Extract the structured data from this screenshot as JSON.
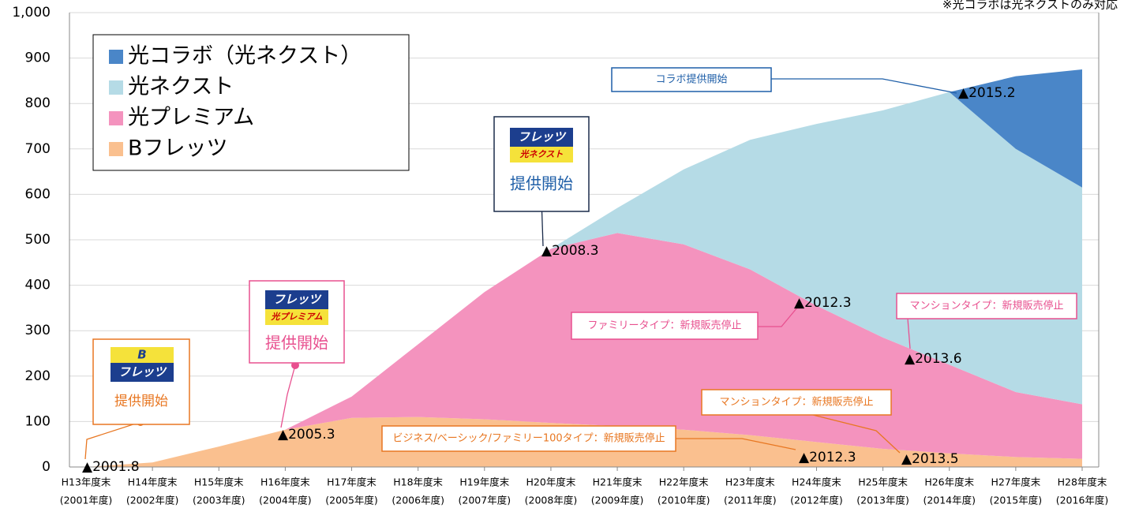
{
  "chart_data": {
    "type": "stacked_area",
    "categories": [
      "H13年度末",
      "H14年度末",
      "H15年度末",
      "H16年度末",
      "H17年度末",
      "H18年度末",
      "H19年度末",
      "H20年度末",
      "H21年度末",
      "H22年度末",
      "H23年度末",
      "H24年度末",
      "H25年度末",
      "H26年度末",
      "H27年度末",
      "H28年度末"
    ],
    "category_years": [
      "(2001年度)",
      "(2002年度)",
      "(2003年度)",
      "(2004年度)",
      "(2005年度)",
      "(2006年度)",
      "(2007年度)",
      "(2008年度)",
      "(2009年度)",
      "(2010年度)",
      "(2011年度)",
      "(2012年度)",
      "(2013年度)",
      "(2014年度)",
      "(2015年度)",
      "(2016年度)"
    ],
    "series": [
      {
        "name": "Bフレッツ",
        "color": "#fac08f",
        "values": [
          0,
          10,
          45,
          82,
          108,
          110,
          105,
          97,
          90,
          82,
          70,
          55,
          40,
          30,
          22,
          18
        ]
      },
      {
        "name": "光プレミアム",
        "color": "#f493be",
        "values": [
          0,
          0,
          0,
          0,
          47,
          160,
          280,
          383,
          425,
          408,
          365,
          300,
          245,
          195,
          143,
          120
        ]
      },
      {
        "name": "光ネクスト",
        "color": "#b5dbe6",
        "values": [
          0,
          0,
          0,
          0,
          0,
          0,
          0,
          0,
          55,
          165,
          285,
          400,
          500,
          600,
          535,
          477
        ]
      },
      {
        "name": "光コラボ（光ネクスト）",
        "color": "#4a86c8",
        "values": [
          0,
          0,
          0,
          0,
          0,
          0,
          0,
          0,
          0,
          0,
          0,
          0,
          0,
          0,
          160,
          260
        ]
      }
    ],
    "ylim": [
      0,
      1000
    ],
    "yticks": [
      0,
      100,
      200,
      300,
      400,
      500,
      600,
      700,
      800,
      900,
      {
        "value": 1000,
        "label": "1,000"
      }
    ],
    "legend": "upper left",
    "annotations": [
      "※光コラボは光ネクストのみ対応",
      "コラボ提供開始",
      "▲2015.2",
      "提供開始",
      "▲2008.3",
      "提供開始",
      "▲2005.3",
      "提供開始",
      "▲2001.8",
      "ファミリータイプ：新規販売停止",
      "▲2012.3",
      "マンションタイプ：新規販売停止",
      "▲2013.6",
      "マンションタイプ：新規販売停止",
      "▲2013.5",
      "ビジネス/ベーシック/ファミリー100タイプ：新規販売停止",
      "▲2012.3"
    ],
    "logos": [
      [
        "フレッツ",
        "光ネクスト"
      ],
      [
        "フレッツ",
        "光プレミアム"
      ],
      [
        "B",
        "フレッツ"
      ]
    ]
  }
}
